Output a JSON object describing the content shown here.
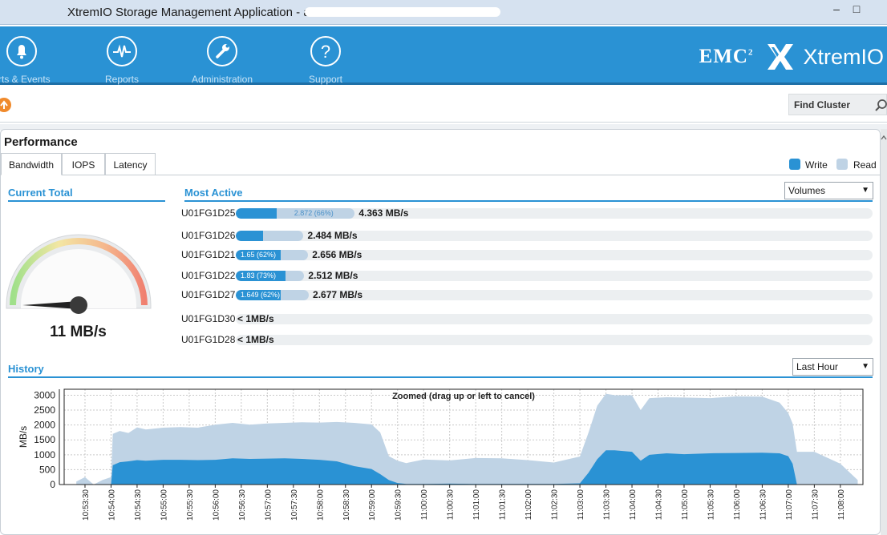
{
  "window": {
    "title": "XtremIO Storage Management Application - a"
  },
  "nav": {
    "items": [
      {
        "label": "erts & Events",
        "icon": "bell-icon"
      },
      {
        "label": "Reports",
        "icon": "pulse-icon"
      },
      {
        "label": "Administration",
        "icon": "wrench-icon"
      },
      {
        "label": "Support",
        "icon": "question-icon"
      }
    ],
    "brand_emc": "EMC",
    "brand_sup": "2",
    "brand_product": "XtremIO"
  },
  "toolbar": {
    "find_label": "Find Cluster"
  },
  "performance": {
    "title": "Performance",
    "tabs": [
      "Bandwidth",
      "IOPS",
      "Latency"
    ],
    "active_tab": "Bandwidth",
    "legend": {
      "write": "Write",
      "read": "Read"
    },
    "colors": {
      "write": "#2a92d4",
      "read": "#bfd3e5"
    },
    "current_total": {
      "title": "Current Total",
      "value": "11 MB/s"
    },
    "most_active": {
      "title": "Most Active",
      "selector": "Volumes",
      "rows": [
        {
          "name": "U01FG1D25",
          "total_label": "4.363 MB/s",
          "total": 4.363,
          "write": 1.491,
          "bar_label": "2.872 (66%)",
          "label_on": "read"
        },
        {
          "name": "U01FG1D26",
          "total_label": "2.484 MB/s",
          "total": 2.484,
          "write": 1.0,
          "bar_label": "",
          "label_on": ""
        },
        {
          "name": "U01FG1D21",
          "total_label": "2.656 MB/s",
          "total": 2.656,
          "write": 1.65,
          "bar_label": "1.65 (62%)",
          "label_on": "write"
        },
        {
          "name": "U01FG1D22",
          "total_label": "2.512 MB/s",
          "total": 2.512,
          "write": 1.83,
          "bar_label": "1.83 (73%)",
          "label_on": "write"
        },
        {
          "name": "U01FG1D27",
          "total_label": "2.677 MB/s",
          "total": 2.677,
          "write": 1.649,
          "bar_label": "1.649 (62%)",
          "label_on": "write"
        },
        {
          "name": "U01FG1D30",
          "total_label": "< 1MB/s",
          "total": 0,
          "write": 0,
          "bar_label": "",
          "label_on": ""
        },
        {
          "name": "U01FG1D28",
          "total_label": "< 1MB/s",
          "total": 0,
          "write": 0,
          "bar_label": "",
          "label_on": ""
        }
      ]
    },
    "history": {
      "title": "History",
      "range": "Last Hour"
    }
  },
  "chart_data": {
    "type": "area",
    "title": "Zoomed (drag up or left to cancel)",
    "xlabel": "",
    "ylabel": "MB/s",
    "ylim": [
      0,
      3200
    ],
    "yticks": [
      0,
      500,
      1000,
      1500,
      2000,
      2500,
      3000
    ],
    "grid": true,
    "stacked": true,
    "x_ticks": [
      "10:53:30",
      "10:54:00",
      "10:54:30",
      "10:55:00",
      "10:55:30",
      "10:56:00",
      "10:56:30",
      "10:57:00",
      "10:57:30",
      "10:58:00",
      "10:58:30",
      "10:59:00",
      "10:59:30",
      "11:00:00",
      "11:00:30",
      "11:01:00",
      "11:01:30",
      "11:02:00",
      "11:02:30",
      "11:03:00",
      "11:03:30",
      "11:04:00",
      "11:04:30",
      "11:05:00",
      "11:05:30",
      "11:06:00",
      "11:06:30",
      "11:07:00",
      "11:07:30",
      "11:08:00"
    ],
    "series": [
      {
        "name": "Write",
        "color": "#2a92d4",
        "x": [
          "10:53:20",
          "10:53:30",
          "10:53:40",
          "10:53:50",
          "10:54:00",
          "10:54:02",
          "10:54:10",
          "10:54:20",
          "10:54:30",
          "10:54:40",
          "10:55:00",
          "10:55:20",
          "10:55:40",
          "10:56:00",
          "10:56:20",
          "10:56:40",
          "10:57:00",
          "10:57:20",
          "10:57:40",
          "10:58:00",
          "10:58:20",
          "10:58:40",
          "10:59:00",
          "10:59:10",
          "10:59:20",
          "10:59:30",
          "10:59:40",
          "11:00:00",
          "11:00:30",
          "11:01:00",
          "11:01:30",
          "11:02:00",
          "11:02:30",
          "11:03:00",
          "11:03:10",
          "11:03:20",
          "11:03:30",
          "11:03:40",
          "11:04:00",
          "11:04:10",
          "11:04:20",
          "11:04:40",
          "11:05:00",
          "11:05:30",
          "11:06:00",
          "11:06:30",
          "11:06:50",
          "11:07:00",
          "11:07:05",
          "11:07:10",
          "11:07:30",
          "11:08:00",
          "11:08:20"
        ],
        "values": [
          0,
          0,
          0,
          0,
          0,
          650,
          750,
          780,
          820,
          800,
          830,
          830,
          820,
          830,
          880,
          860,
          870,
          880,
          860,
          830,
          780,
          620,
          520,
          350,
          150,
          50,
          20,
          20,
          30,
          20,
          20,
          20,
          20,
          40,
          400,
          850,
          1150,
          1150,
          1100,
          800,
          1000,
          1050,
          1020,
          1050,
          1060,
          1070,
          1050,
          950,
          700,
          0,
          0,
          0,
          0
        ]
      },
      {
        "name": "Read",
        "color": "#bfd3e5",
        "x": [
          "10:53:20",
          "10:53:30",
          "10:53:40",
          "10:53:50",
          "10:54:00",
          "10:54:02",
          "10:54:10",
          "10:54:20",
          "10:54:30",
          "10:54:40",
          "10:55:00",
          "10:55:20",
          "10:55:40",
          "10:56:00",
          "10:56:20",
          "10:56:40",
          "10:57:00",
          "10:57:20",
          "10:57:40",
          "10:58:00",
          "10:58:20",
          "10:58:40",
          "10:59:00",
          "10:59:10",
          "10:59:20",
          "10:59:30",
          "10:59:40",
          "11:00:00",
          "11:00:30",
          "11:01:00",
          "11:01:30",
          "11:02:00",
          "11:02:30",
          "11:03:00",
          "11:03:10",
          "11:03:20",
          "11:03:30",
          "11:03:40",
          "11:04:00",
          "11:04:10",
          "11:04:20",
          "11:04:40",
          "11:05:00",
          "11:05:30",
          "11:06:00",
          "11:06:30",
          "11:06:50",
          "11:07:00",
          "11:07:05",
          "11:07:10",
          "11:07:30",
          "11:08:00",
          "11:08:20"
        ],
        "values": [
          100,
          250,
          0,
          150,
          250,
          1050,
          1050,
          950,
          1100,
          1050,
          1080,
          1100,
          1090,
          1180,
          1190,
          1150,
          1180,
          1190,
          1230,
          1250,
          1320,
          1450,
          1500,
          1400,
          800,
          750,
          700,
          820,
          780,
          870,
          860,
          800,
          720,
          900,
          1350,
          1800,
          1900,
          1850,
          1900,
          1700,
          1900,
          1880,
          1900,
          1850,
          1900,
          1880,
          1700,
          1450,
          1350,
          1100,
          1100,
          700,
          150
        ]
      }
    ]
  }
}
